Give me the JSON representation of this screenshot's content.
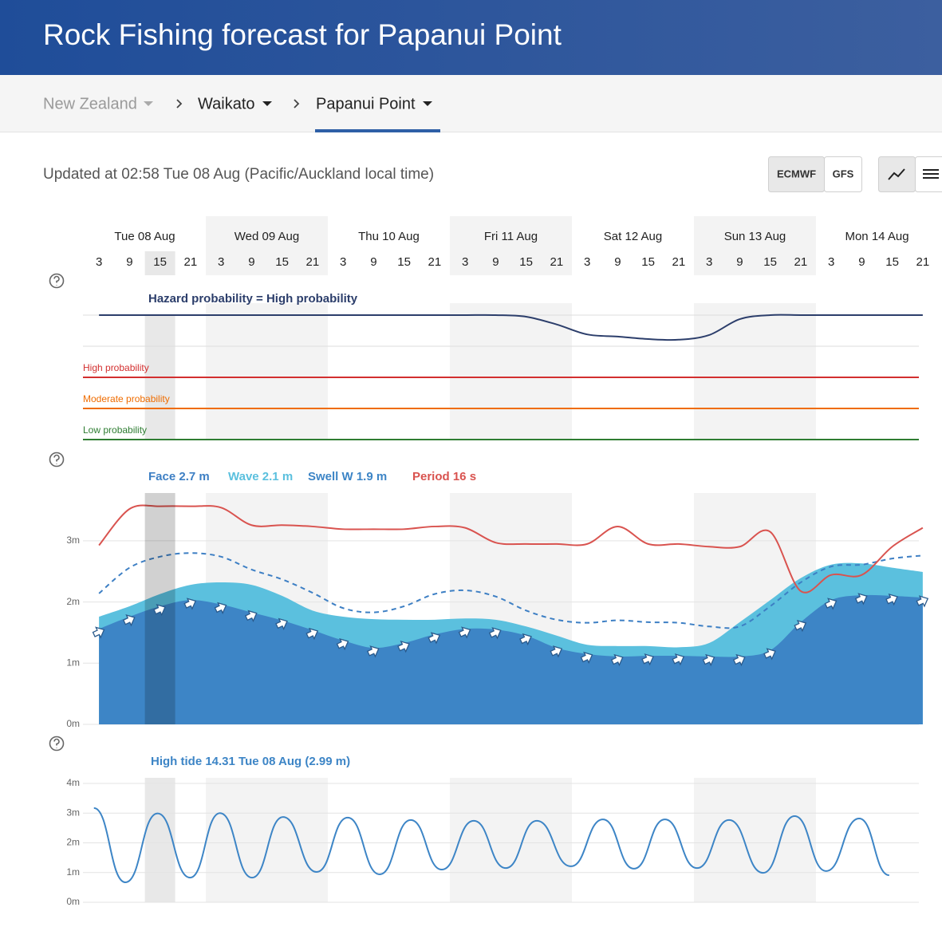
{
  "header": {
    "title": "Rock Fishing forecast for Papanui Point"
  },
  "breadcrumb": [
    "New Zealand",
    "Waikato",
    "Papanui Point"
  ],
  "updated": "Updated at 02:58 Tue 08 Aug (Pacific/Auckland local time)",
  "models": [
    "ECMWF",
    "GFS"
  ],
  "days": [
    "Tue 08 Aug",
    "Wed 09 Aug",
    "Thu 10 Aug",
    "Fri 11 Aug",
    "Sat 12 Aug",
    "Sun 13 Aug",
    "Mon 14 Aug"
  ],
  "hours": [
    3,
    9,
    15,
    21
  ],
  "selected_slot": 2,
  "chart_data": [
    {
      "type": "line",
      "title": "Hazard probability = High probability",
      "color": "#2c3e6b",
      "ylim": [
        1,
        5
      ],
      "grid_lines": [
        4,
        5
      ],
      "levels": [
        {
          "label": "High probability",
          "value": 3,
          "color": "#d32f2f"
        },
        {
          "label": "Moderate probability",
          "value": 2,
          "color": "#ef6c00"
        },
        {
          "label": "Low probability",
          "value": 1,
          "color": "#2e7d32"
        }
      ],
      "values": [
        5,
        5,
        5,
        5,
        5,
        5,
        5,
        5,
        5,
        5,
        5,
        5,
        5,
        5,
        4.95,
        4.7,
        4.38,
        4.31,
        4.23,
        4.21,
        4.36,
        4.87,
        5,
        5,
        5,
        5,
        5,
        5
      ]
    },
    {
      "type": "area",
      "ylim": [
        0,
        4.4
      ],
      "y2lim": [
        0,
        20
      ],
      "yticks": [
        {
          "value": 0,
          "label": "0m"
        },
        {
          "value": 1,
          "label": "1m"
        },
        {
          "value": 2,
          "label": "2m"
        },
        {
          "value": 3,
          "label": "3m"
        }
      ],
      "series": [
        {
          "name": "Face 2.7 m",
          "color": "#3d7fc4",
          "style": "dashed",
          "values": [
            2.14,
            2.56,
            2.74,
            2.8,
            2.74,
            2.53,
            2.37,
            2.15,
            1.9,
            1.83,
            1.93,
            2.13,
            2.19,
            2.09,
            1.86,
            1.71,
            1.66,
            1.7,
            1.67,
            1.66,
            1.6,
            1.6,
            1.93,
            2.32,
            2.58,
            2.61,
            2.71,
            2.76
          ]
        },
        {
          "name": "Wave 2.1 m",
          "color": "#5bc0de",
          "style": "fill",
          "values": [
            1.76,
            1.93,
            2.13,
            2.28,
            2.32,
            2.28,
            2.1,
            1.86,
            1.76,
            1.72,
            1.71,
            1.71,
            1.73,
            1.71,
            1.6,
            1.45,
            1.3,
            1.28,
            1.28,
            1.26,
            1.33,
            1.67,
            2.03,
            2.39,
            2.61,
            2.63,
            2.56,
            2.49
          ]
        },
        {
          "name": "Swell W 1.9 m",
          "color": "#3d85c6",
          "style": "fill-arrows",
          "values": [
            1.56,
            1.76,
            1.93,
            2.03,
            1.96,
            1.83,
            1.7,
            1.54,
            1.37,
            1.25,
            1.33,
            1.47,
            1.56,
            1.55,
            1.45,
            1.25,
            1.15,
            1.11,
            1.12,
            1.12,
            1.11,
            1.11,
            1.21,
            1.67,
            2.03,
            2.11,
            2.1,
            2.07
          ]
        },
        {
          "name": "Period 16 s",
          "color": "#d9534f",
          "style": "line",
          "axis": "y2",
          "values": [
            13.3,
            16,
            16.2,
            16.2,
            16.1,
            14.8,
            14.8,
            14.7,
            14.5,
            14.5,
            14.5,
            14.7,
            14.6,
            13.5,
            13.4,
            13.4,
            13.4,
            14.7,
            13.4,
            13.4,
            13.2,
            13.2,
            14.3,
            9.9,
            11.1,
            11.1,
            13.2,
            14.6
          ]
        }
      ]
    },
    {
      "type": "line",
      "title": "High tide 14.31 Tue 08 Aug (2.99 m)",
      "color": "#3d85c6",
      "ylim": [
        0,
        4
      ],
      "yticks": [
        {
          "value": 0,
          "label": "0m"
        },
        {
          "value": 1,
          "label": "1m"
        },
        {
          "value": 2,
          "label": "2m"
        },
        {
          "value": 3,
          "label": "3m"
        },
        {
          "value": 4,
          "label": "4m"
        }
      ],
      "x": [
        2.0,
        8.2,
        14.52,
        20.9,
        26.8,
        33.1,
        39.2,
        45.8,
        51.9,
        58.2,
        64.3,
        70.4,
        76.7,
        83.0,
        89.1,
        95.8,
        102.1,
        108.2,
        114.3,
        120.6,
        126.9,
        133.6,
        139.8,
        146.0,
        152.5,
        158.4
      ],
      "values": [
        3.17,
        0.67,
        2.99,
        0.83,
        3.0,
        0.83,
        2.87,
        1.02,
        2.85,
        0.94,
        2.77,
        1.1,
        2.74,
        1.15,
        2.74,
        1.21,
        2.79,
        1.13,
        2.79,
        1.15,
        2.77,
        0.99,
        2.9,
        1.05,
        2.82,
        0.91
      ]
    }
  ]
}
